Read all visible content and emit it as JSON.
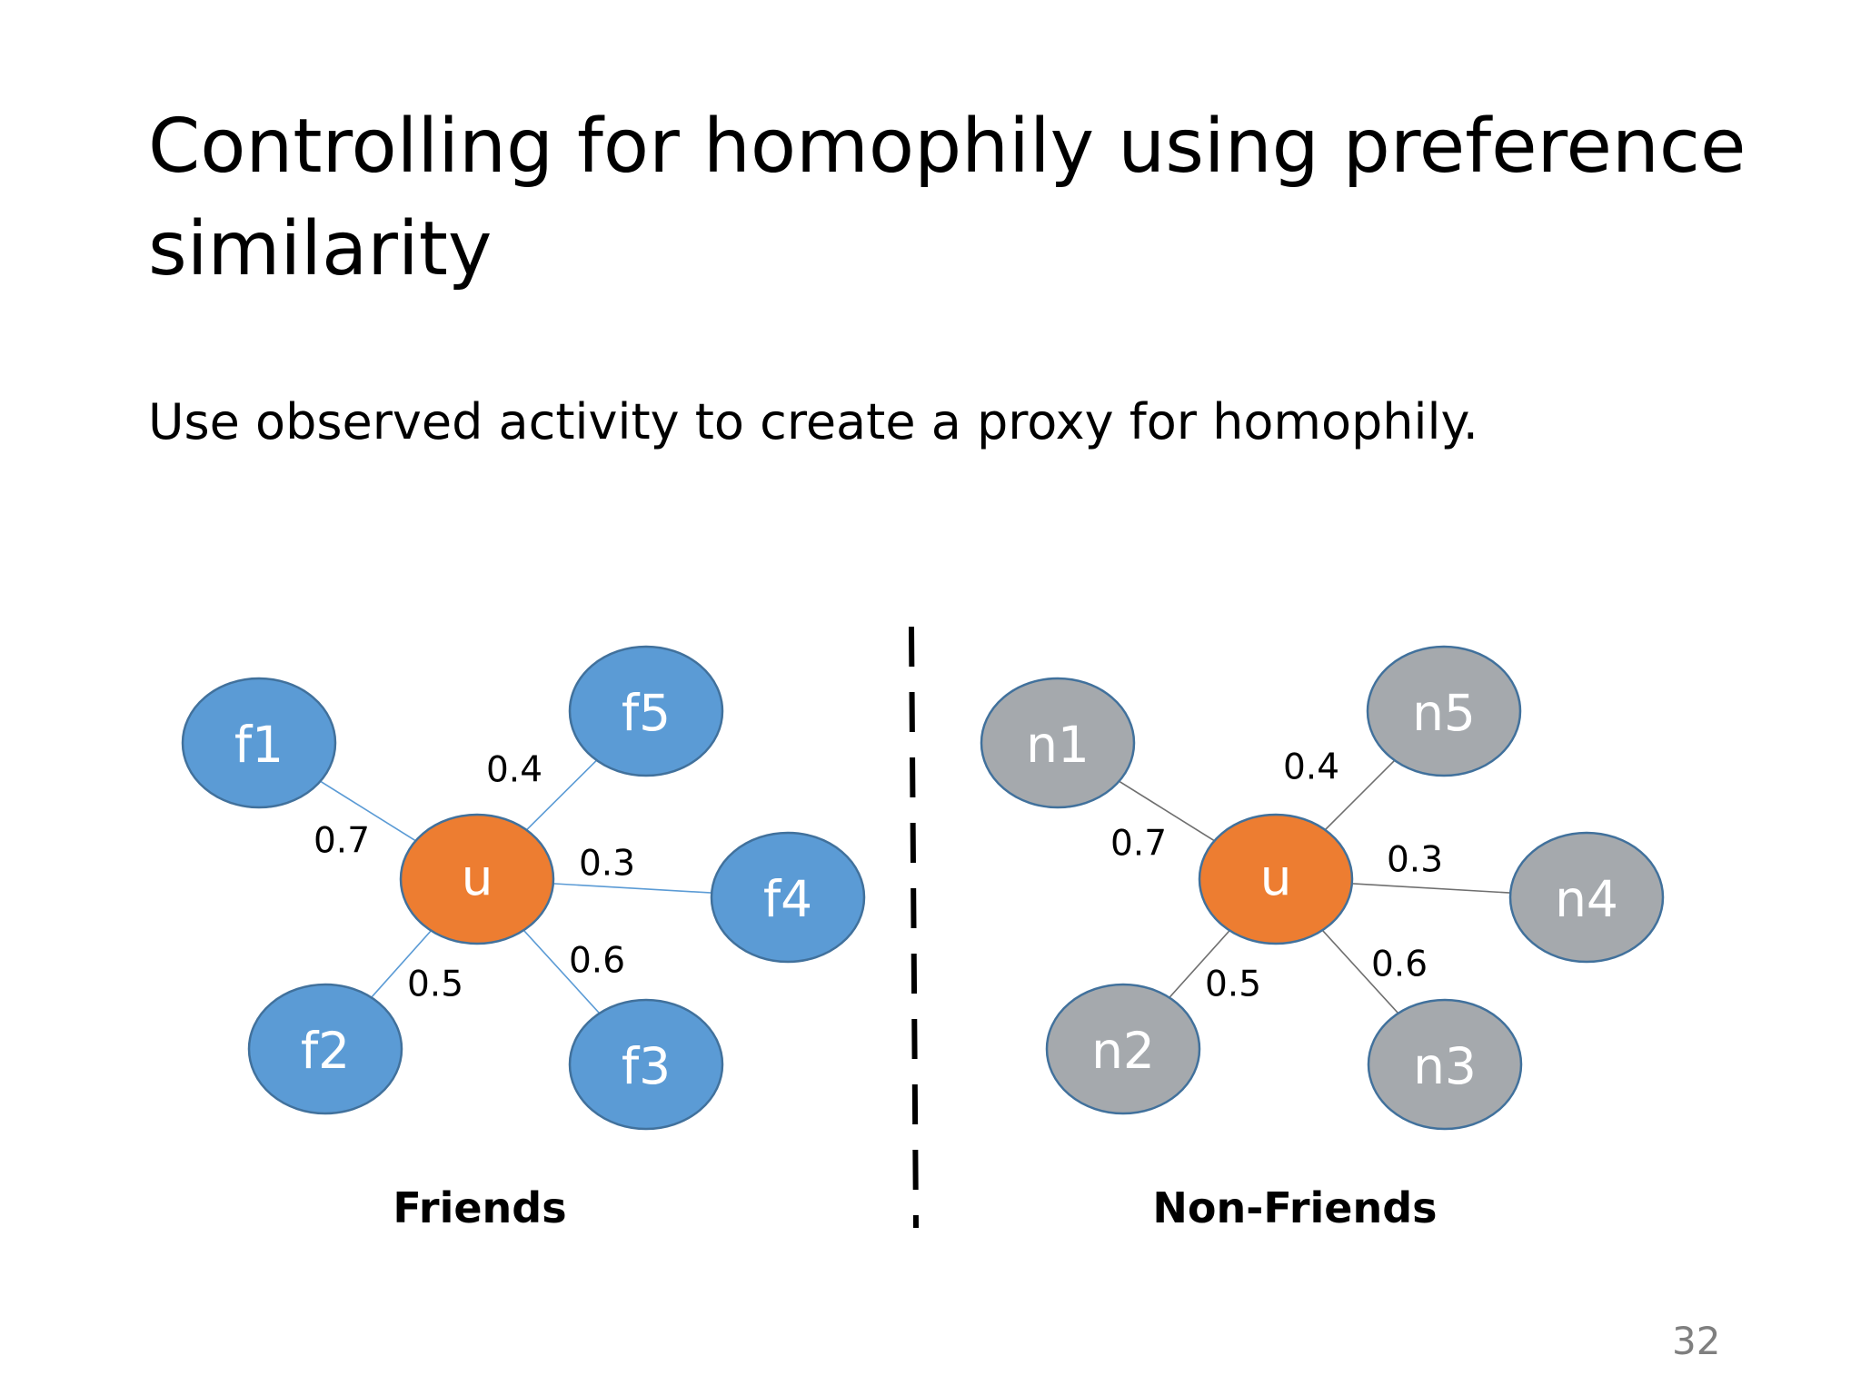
{
  "slide": {
    "title": "Controlling for homophily using preference similarity",
    "subtitle": "Use observed activity to create a proxy for homophily.",
    "page_number": "32"
  },
  "colors": {
    "friend_node": "#5b9bd5",
    "nonfriend_node": "#a5a9ad",
    "center_node": "#ed7d31",
    "node_stroke": "#41719c",
    "friend_edge": "#5b9bd5",
    "nonfriend_edge": "#6f6f6f"
  },
  "diagram": {
    "friends": {
      "caption": "Friends",
      "center": "u",
      "nodes": [
        {
          "label": "f1",
          "weight": "0.7"
        },
        {
          "label": "f5",
          "weight": "0.4"
        },
        {
          "label": "f4",
          "weight": "0.3"
        },
        {
          "label": "f3",
          "weight": "0.6"
        },
        {
          "label": "f2",
          "weight": "0.5"
        }
      ]
    },
    "nonfriends": {
      "caption": "Non-Friends",
      "center": "u",
      "nodes": [
        {
          "label": "n1",
          "weight": "0.7"
        },
        {
          "label": "n5",
          "weight": "0.4"
        },
        {
          "label": "n4",
          "weight": "0.3"
        },
        {
          "label": "n3",
          "weight": "0.6"
        },
        {
          "label": "n2",
          "weight": "0.5"
        }
      ]
    }
  }
}
